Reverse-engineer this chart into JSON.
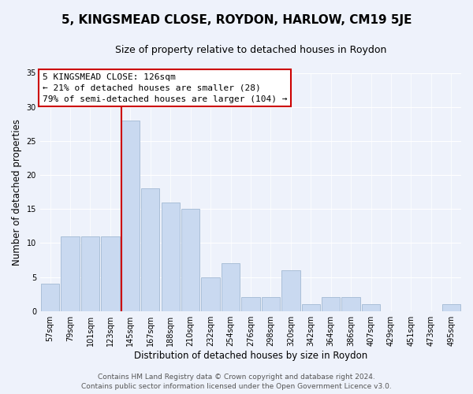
{
  "title": "5, KINGSMEAD CLOSE, ROYDON, HARLOW, CM19 5JE",
  "subtitle": "Size of property relative to detached houses in Roydon",
  "xlabel": "Distribution of detached houses by size in Roydon",
  "ylabel": "Number of detached properties",
  "bar_labels": [
    "57sqm",
    "79sqm",
    "101sqm",
    "123sqm",
    "145sqm",
    "167sqm",
    "188sqm",
    "210sqm",
    "232sqm",
    "254sqm",
    "276sqm",
    "298sqm",
    "320sqm",
    "342sqm",
    "364sqm",
    "386sqm",
    "407sqm",
    "429sqm",
    "451sqm",
    "473sqm",
    "495sqm"
  ],
  "bar_values": [
    4,
    11,
    11,
    11,
    28,
    18,
    16,
    15,
    5,
    7,
    2,
    2,
    6,
    1,
    2,
    2,
    1,
    0,
    0,
    0,
    1
  ],
  "bar_color": "#c9d9f0",
  "bar_edge_color": "#aabfd8",
  "vline_index": 4,
  "ylim": [
    0,
    35
  ],
  "yticks": [
    0,
    5,
    10,
    15,
    20,
    25,
    30,
    35
  ],
  "annotation_title": "5 KINGSMEAD CLOSE: 126sqm",
  "annotation_line1": "← 21% of detached houses are smaller (28)",
  "annotation_line2": "79% of semi-detached houses are larger (104) →",
  "annotation_box_color": "#ffffff",
  "annotation_box_edge": "#cc0000",
  "vline_color": "#cc0000",
  "footer_line1": "Contains HM Land Registry data © Crown copyright and database right 2024.",
  "footer_line2": "Contains public sector information licensed under the Open Government Licence v3.0.",
  "title_fontsize": 11,
  "subtitle_fontsize": 9,
  "axis_label_fontsize": 8.5,
  "tick_fontsize": 7,
  "annotation_fontsize": 8,
  "footer_fontsize": 6.5,
  "background_color": "#eef2fb"
}
